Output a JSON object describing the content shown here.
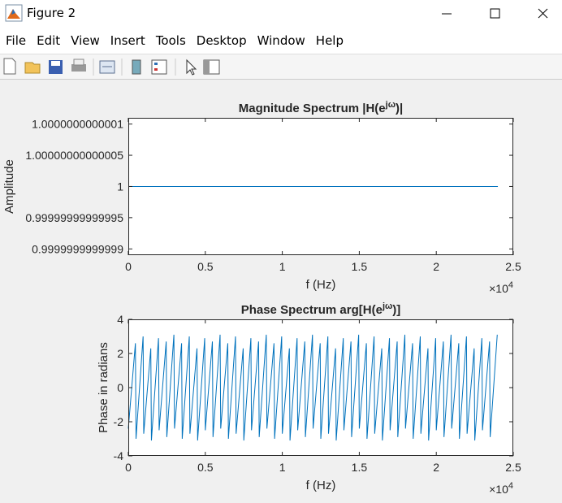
{
  "window": {
    "title": "Figure 2",
    "menu": [
      "File",
      "Edit",
      "View",
      "Insert",
      "Tools",
      "Desktop",
      "Window",
      "Help"
    ]
  },
  "chart_data": [
    {
      "type": "line",
      "title": [
        "Magnitude Spectrum |H(e",
        "jω",
        ")|"
      ],
      "x_label": "f (Hz)",
      "y_label": "Amplitude",
      "x_exponent": [
        "×10",
        "4"
      ],
      "xlim": [
        0,
        25000
      ],
      "xticks": [
        0,
        {
          "value": 5000,
          "label": "0.5"
        },
        {
          "value": 10000,
          "label": "1"
        },
        {
          "value": 15000,
          "label": "1.5"
        },
        {
          "value": 20000,
          "label": "2"
        },
        {
          "value": 25000,
          "label": "2.5"
        }
      ],
      "ylim": [
        0.99999999999989,
        1.00000000000011
      ],
      "yticks": [
        0.9999999999999,
        0.99999999999995,
        1,
        1.00000000000005,
        1.0000000000001
      ],
      "series": [
        {
          "color": "#0072bd",
          "x": [
            0,
            24000
          ],
          "values": [
            1,
            1
          ]
        }
      ]
    },
    {
      "type": "line",
      "title": [
        "Phase Spectrum arg[H(e",
        "jω",
        ")]"
      ],
      "x_label": "f (Hz)",
      "y_label": "Phase in radians",
      "x_exponent": [
        "×10",
        "4"
      ],
      "xlim": [
        0,
        25000
      ],
      "xticks": [
        0,
        {
          "value": 5000,
          "label": "0.5"
        },
        {
          "value": 10000,
          "label": "1"
        },
        {
          "value": 15000,
          "label": "1.5"
        },
        {
          "value": 20000,
          "label": "2"
        },
        {
          "value": 25000,
          "label": "2.5"
        }
      ],
      "ylim": [
        -4,
        4
      ],
      "yticks": [
        -4,
        -2,
        0,
        2,
        4
      ],
      "series": [
        {
          "color": "#0072bd",
          "x": [
            0,
            460,
            500,
            960,
            1000,
            1460,
            1500,
            1960,
            2000,
            2460,
            2500,
            2960,
            3000,
            3460,
            3500,
            3960,
            4000,
            4460,
            4500,
            4960,
            5000,
            5460,
            5500,
            5960,
            6000,
            6460,
            6500,
            6960,
            7000,
            7460,
            7500,
            7960,
            8000,
            8460,
            8500,
            8960,
            9000,
            9460,
            9500,
            9960,
            10000,
            10460,
            10500,
            10960,
            11000,
            11460,
            11500,
            11960,
            12000,
            12460,
            12500,
            12960,
            13000,
            13460,
            13500,
            13960,
            14000,
            14460,
            14500,
            14960,
            15000,
            15460,
            15500,
            15960,
            16000,
            16460,
            16500,
            16960,
            17000,
            17460,
            17500,
            17960,
            18000,
            18460,
            18500,
            18960,
            19000,
            19460,
            19500,
            19960,
            20000,
            20460,
            20500,
            20960,
            21000,
            21460,
            21500,
            21960,
            22000,
            22460,
            22500,
            22960,
            23000,
            23460,
            23500,
            23960
          ],
          "values": [
            -2.4,
            2.6,
            -3.0,
            3.0,
            -2.7,
            2.3,
            -3.1,
            2.9,
            -2.5,
            2.7,
            -2.9,
            3.1,
            -2.4,
            2.6,
            -3.0,
            3.0,
            -2.7,
            2.3,
            -3.1,
            2.9,
            -2.5,
            2.7,
            -2.9,
            3.1,
            -2.4,
            2.6,
            -3.0,
            3.0,
            -2.7,
            2.3,
            -3.1,
            2.9,
            -2.5,
            2.7,
            -2.9,
            3.1,
            -2.4,
            2.6,
            -3.0,
            3.0,
            -2.7,
            2.3,
            -3.1,
            2.9,
            -2.5,
            2.7,
            -2.9,
            3.1,
            -2.4,
            2.6,
            -3.0,
            3.0,
            -2.7,
            2.3,
            -3.1,
            2.9,
            -2.5,
            2.7,
            -2.9,
            3.1,
            -2.4,
            2.6,
            -3.0,
            3.0,
            -2.7,
            2.3,
            -3.1,
            2.9,
            -2.5,
            2.7,
            -2.9,
            3.1,
            -2.4,
            2.6,
            -3.0,
            3.0,
            -2.7,
            2.3,
            -3.1,
            2.9,
            -2.5,
            2.7,
            -2.9,
            3.1,
            -2.4,
            2.6,
            -3.0,
            3.0,
            -2.7,
            2.3,
            -3.1,
            2.9,
            -2.5,
            2.7,
            -2.9,
            3.1
          ]
        }
      ]
    }
  ]
}
